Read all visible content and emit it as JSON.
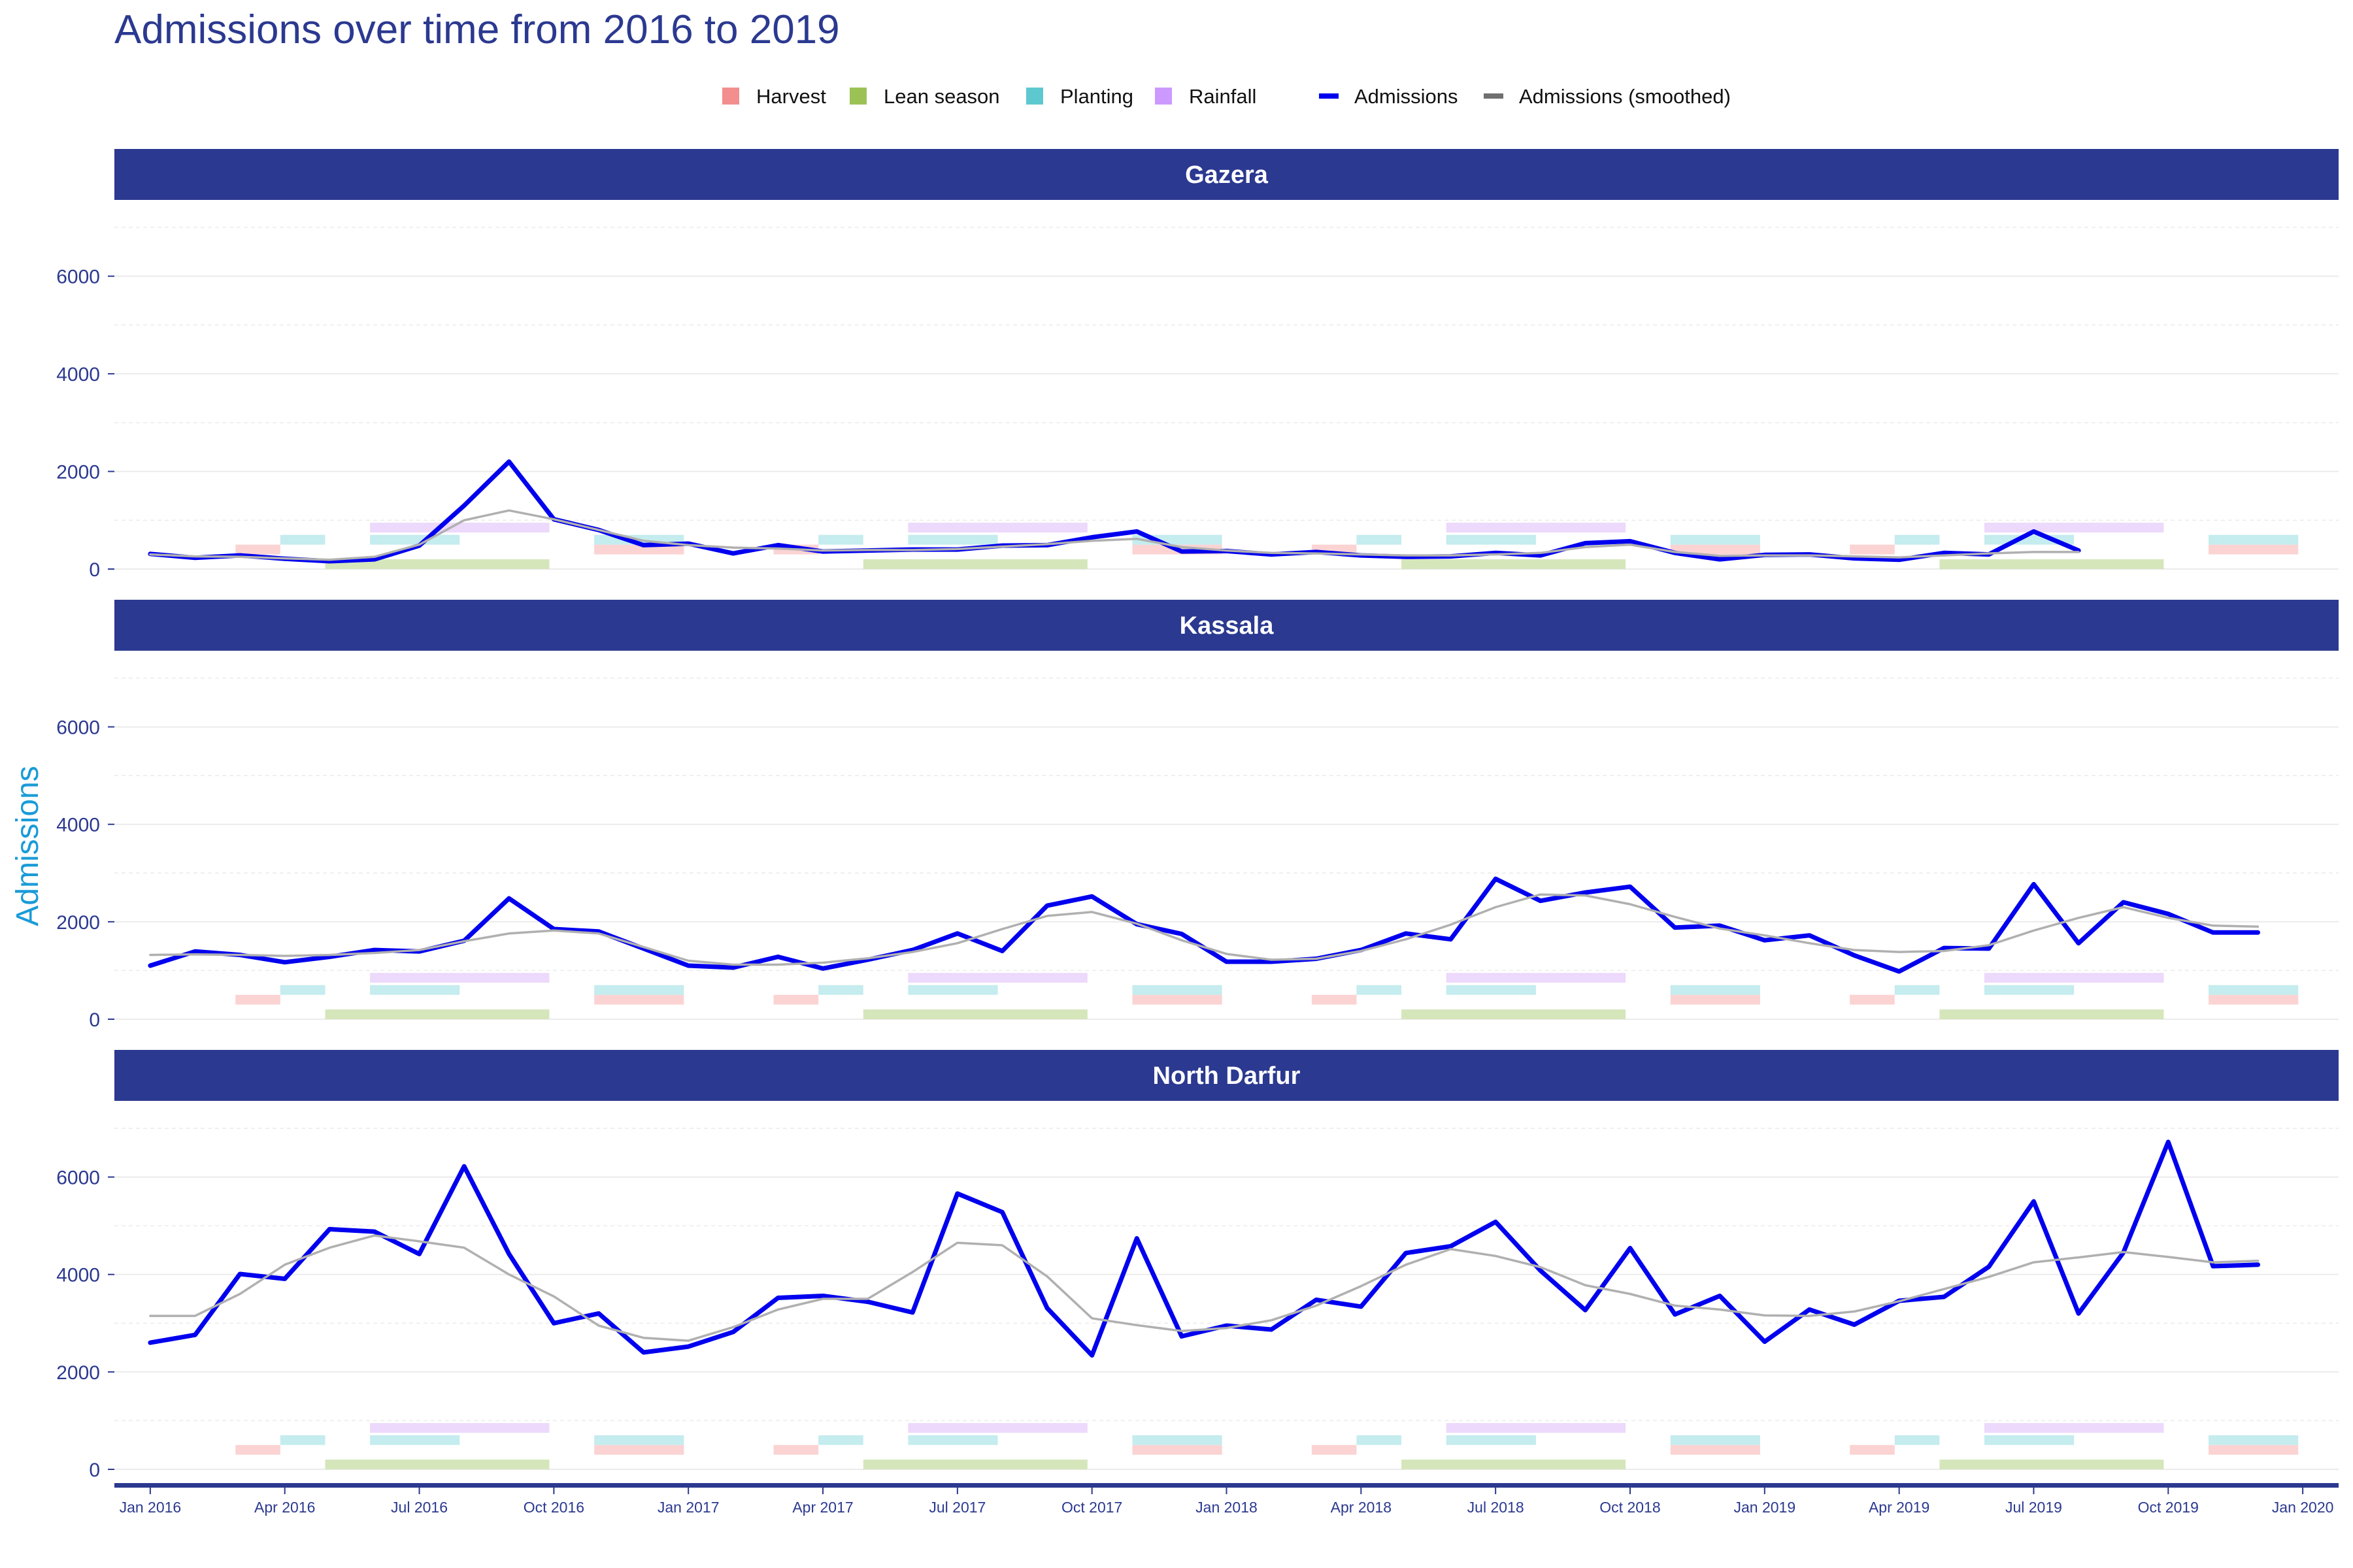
{
  "chart_data": {
    "type": "line",
    "title": "Admissions over time from 2016 to 2019",
    "ylabel": "Admissions",
    "xlabel": "",
    "ylim": [
      0,
      7000
    ],
    "y_ticks": [
      0,
      2000,
      4000,
      6000
    ],
    "x_ticks": [
      "Jan 2016",
      "Apr 2016",
      "Jul 2016",
      "Oct 2016",
      "Jan 2017",
      "Apr 2017",
      "Jul 2017",
      "Oct 2017",
      "Jan 2018",
      "Apr 2018",
      "Jul 2018",
      "Oct 2018",
      "Jan 2019",
      "Apr 2019",
      "Jul 2019",
      "Oct 2019",
      "Jan 2020"
    ],
    "x_range_months": [
      -0.8,
      48.8
    ],
    "grid": true,
    "legend_position": "top",
    "legend": [
      {
        "label": "Harvest",
        "kind": "fill",
        "color": "#f28e8e"
      },
      {
        "label": "Lean season",
        "kind": "fill",
        "color": "#9cc255"
      },
      {
        "label": "Planting",
        "kind": "fill",
        "color": "#5ec8cf"
      },
      {
        "label": "Rainfall",
        "kind": "fill",
        "color": "#cc99ff"
      },
      {
        "label": "Admissions",
        "kind": "line",
        "color": "#0000ee"
      },
      {
        "label": "Admissions (smoothed)",
        "kind": "line",
        "color": "#707070"
      }
    ],
    "colors": {
      "strip": "#2b3990",
      "admissions": "#0000ee",
      "smoothed": "#b0b0b0",
      "harvest": "#fbd3d3",
      "lean": "#d5e6bb",
      "planting": "#c5ecee",
      "rainfall": "#ecd9fb"
    },
    "season_bands": [
      {
        "season": "Harvest",
        "level": 400,
        "ranges": [
          [
            1.9,
            2.9
          ],
          [
            9.9,
            11.9
          ],
          [
            13.9,
            14.9
          ],
          [
            21.9,
            23.9
          ],
          [
            25.9,
            26.9
          ],
          [
            33.9,
            35.9
          ],
          [
            37.9,
            38.9
          ],
          [
            45.9,
            47.9
          ]
        ]
      },
      {
        "season": "Lean season",
        "level": 100,
        "ranges": [
          [
            3.9,
            8.9
          ],
          [
            15.9,
            20.9
          ],
          [
            27.9,
            32.9
          ],
          [
            39.9,
            44.9
          ]
        ]
      },
      {
        "season": "Planting",
        "level": 600,
        "ranges": [
          [
            2.9,
            3.9
          ],
          [
            4.9,
            6.9
          ],
          [
            9.9,
            11.9
          ],
          [
            14.9,
            15.9
          ],
          [
            16.9,
            18.9
          ],
          [
            21.9,
            23.9
          ],
          [
            26.9,
            27.9
          ],
          [
            28.9,
            30.9
          ],
          [
            33.9,
            35.9
          ],
          [
            38.9,
            39.9
          ],
          [
            40.9,
            42.9
          ],
          [
            45.9,
            47.9
          ]
        ]
      },
      {
        "season": "Rainfall",
        "level": 850,
        "ranges": [
          [
            4.9,
            8.9
          ],
          [
            16.9,
            20.9
          ],
          [
            28.9,
            32.9
          ],
          [
            40.9,
            44.9
          ]
        ]
      }
    ],
    "panels": [
      {
        "name": "Gazera",
        "series": [
          {
            "name": "Admissions",
            "values": [
              310,
              230,
              280,
              210,
              160,
              200,
              480,
              1300,
              2200,
              1020,
              800,
              490,
              520,
              320,
              490,
              360,
              380,
              400,
              400,
              480,
              490,
              650,
              770,
              360,
              370,
              300,
              350,
              280,
              250,
              260,
              330,
              280,
              530,
              570,
              330,
              200,
              290,
              300,
              220,
              190,
              330,
              300,
              770,
              380
            ]
          },
          {
            "name": "Admissions (smoothed)",
            "values": [
              300,
              260,
              250,
              220,
              190,
              250,
              500,
              1000,
              1200,
              1020,
              800,
              580,
              490,
              440,
              420,
              380,
              390,
              390,
              410,
              460,
              510,
              580,
              620,
              450,
              380,
              330,
              320,
              300,
              280,
              280,
              300,
              330,
              450,
              500,
              350,
              270,
              280,
              280,
              260,
              240,
              280,
              320,
              350,
              350
            ]
          }
        ]
      },
      {
        "name": "Kassala",
        "series": [
          {
            "name": "Admissions",
            "values": [
              1100,
              1390,
              1320,
              1170,
              1280,
              1420,
              1390,
              1610,
              2480,
              1850,
              1800,
              1450,
              1100,
              1060,
              1280,
              1040,
              1220,
              1420,
              1760,
              1400,
              2330,
              2520,
              1950,
              1750,
              1180,
              1180,
              1240,
              1420,
              1760,
              1640,
              2880,
              2430,
              2600,
              2720,
              1880,
              1920,
              1620,
              1720,
              1310,
              980,
              1460,
              1450,
              2770,
              1560,
              2400,
              2160,
              1780,
              1780
            ]
          },
          {
            "name": "Admissions (smoothed)",
            "values": [
              1320,
              1330,
              1320,
              1300,
              1320,
              1360,
              1420,
              1600,
              1760,
              1820,
              1760,
              1480,
              1200,
              1120,
              1120,
              1160,
              1250,
              1380,
              1560,
              1850,
              2120,
              2200,
              1960,
              1620,
              1340,
              1220,
              1240,
              1400,
              1640,
              1940,
              2300,
              2560,
              2540,
              2360,
              2100,
              1860,
              1720,
              1560,
              1420,
              1380,
              1400,
              1520,
              1820,
              2080,
              2300,
              2080,
              1920,
              1900
            ]
          }
        ]
      },
      {
        "name": "North Darfur",
        "series": [
          {
            "name": "Admissions",
            "values": [
              2600,
              2760,
              4010,
              3910,
              4930,
              4880,
              4420,
              6220,
              4420,
              3000,
              3200,
              2400,
              2520,
              2820,
              3520,
              3560,
              3440,
              3220,
              5660,
              5280,
              3310,
              2340,
              4740,
              2730,
              2950,
              2870,
              3480,
              3340,
              4440,
              4580,
              5080,
              4080,
              3270,
              4540,
              3180,
              3560,
              2620,
              3280,
              2970,
              3460,
              3540,
              4160,
              5500,
              3200,
              4450,
              6720,
              4170,
              4200
            ]
          },
          {
            "name": "Admissions (smoothed)",
            "values": [
              3150,
              3150,
              3600,
              4200,
              4550,
              4800,
              4680,
              4550,
              4000,
              3550,
              2950,
              2700,
              2640,
              2920,
              3280,
              3500,
              3500,
              4050,
              4650,
              4600,
              3960,
              3100,
              2960,
              2840,
              2900,
              3060,
              3360,
              3760,
              4200,
              4520,
              4380,
              4150,
              3780,
              3600,
              3360,
              3280,
              3160,
              3150,
              3240,
              3450,
              3700,
              3950,
              4250,
              4350,
              4460,
              4360,
              4250,
              4280
            ]
          }
        ]
      }
    ]
  }
}
